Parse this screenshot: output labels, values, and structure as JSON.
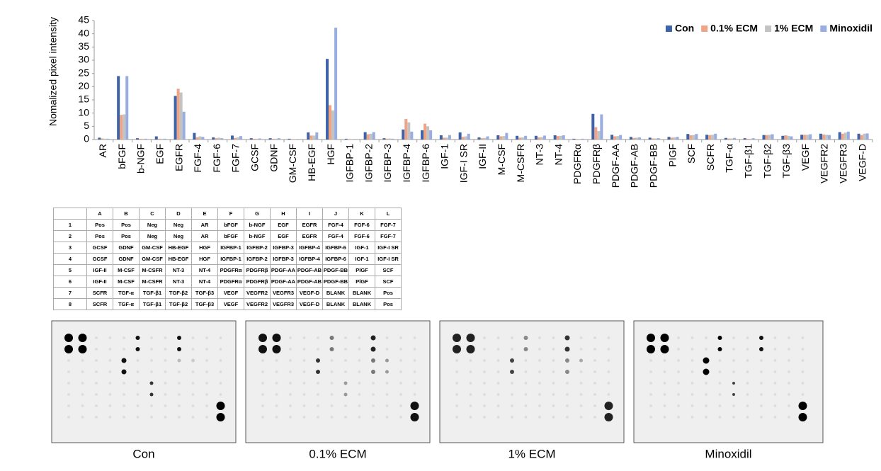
{
  "chart_data": {
    "type": "bar",
    "y_label": "Nomalized pixel intensity",
    "categories": [
      "AR",
      "bFGF",
      "b-NGF",
      "EGF",
      "EGFR",
      "FGF-4",
      "FGF-6",
      "FGF-7",
      "GCSF",
      "GDNF",
      "GM-CSF",
      "HB-EGF",
      "HGF",
      "IGFBP-1",
      "IGFBP-2",
      "IGFBP-3",
      "IGFBP-4",
      "IGFBP-6",
      "IGF-1",
      "IGF-I SR",
      "IGF-II",
      "M-CSF",
      "M-CSFR",
      "NT-3",
      "NT-4",
      "PDGFRα",
      "PDGFRβ",
      "PDGF-AA",
      "PDGF-AB",
      "PDGF-BB",
      "PIGF",
      "SCF",
      "SCFR",
      "TGF-α",
      "TGF-β1",
      "TGF-β2",
      "TGF-β3",
      "VEGF",
      "VEGFR2",
      "VEGFR3",
      "VEGF-D"
    ],
    "series": [
      {
        "name": "Con",
        "color": "#3f63a8",
        "values": [
          0.7,
          24,
          0.5,
          1.2,
          16.5,
          2.5,
          0.8,
          1.5,
          0.5,
          0.5,
          0.3,
          2.7,
          30.5,
          0.3,
          2.8,
          0.5,
          3.8,
          3.5,
          1.6,
          2.7,
          0.8,
          1.6,
          1.4,
          1.4,
          1.6,
          0.3,
          9.7,
          1.8,
          1,
          0.7,
          1,
          2.1,
          1.8,
          0.6,
          0.5,
          1.7,
          1.4,
          1.8,
          2.2,
          2.8,
          2.2
        ]
      },
      {
        "name": "0.1% ECM",
        "color": "#f0a486",
        "values": [
          0.4,
          9.3,
          0.3,
          0.3,
          19.2,
          0.8,
          0.5,
          0.6,
          0.3,
          0.3,
          0.2,
          1.5,
          13,
          0.2,
          2,
          0.3,
          7.8,
          6,
          0.7,
          1,
          0.5,
          1.2,
          0.7,
          0.8,
          1.3,
          0.2,
          4.7,
          1.2,
          0.6,
          0.4,
          0.7,
          1.6,
          1.7,
          0.4,
          0.3,
          1.7,
          1.6,
          1.8,
          1.9,
          2.2,
          1.7
        ]
      },
      {
        "name": "1% ECM",
        "color": "#c3c3c3",
        "values": [
          0.3,
          9.5,
          0.3,
          0.3,
          17.8,
          1.2,
          0.7,
          0.8,
          0.3,
          0.3,
          0.2,
          1.5,
          11,
          0.2,
          2.2,
          0.4,
          6.5,
          5,
          0.7,
          1.2,
          0.6,
          1.3,
          0.8,
          0.9,
          1.4,
          0.2,
          3.2,
          1.3,
          0.7,
          0.4,
          0.8,
          1.7,
          1.8,
          0.4,
          0.3,
          1.8,
          1.4,
          1.8,
          1.8,
          2.6,
          2.2
        ]
      },
      {
        "name": "Minoxidil",
        "color": "#99ade0",
        "values": [
          0.3,
          24,
          0.3,
          0.3,
          10.5,
          1,
          0.5,
          1.3,
          0.4,
          0.5,
          0.2,
          2.7,
          42.3,
          0.2,
          2.8,
          0.3,
          3,
          3.5,
          1.7,
          2.2,
          1.2,
          2.5,
          1.4,
          1.5,
          1.6,
          0.3,
          9.5,
          1.7,
          0.8,
          0.5,
          1,
          2.1,
          2.2,
          0.6,
          0.5,
          2,
          1.2,
          2,
          1.7,
          3,
          2.3
        ]
      }
    ],
    "ylim": [
      0,
      45
    ],
    "yticks": [
      0,
      5,
      10,
      15,
      20,
      25,
      30,
      35,
      40,
      45
    ],
    "grid": false,
    "legend": "upper right"
  },
  "table": {
    "header": [
      "A",
      "B",
      "C",
      "D",
      "E",
      "F",
      "G",
      "H",
      "I",
      "J",
      "K",
      "L"
    ],
    "rows": [
      [
        "1",
        "Pos",
        "Pos",
        "Neg",
        "Neg",
        "AR",
        "bFGF",
        "b-NGF",
        "EGF",
        "EGFR",
        "FGF-4",
        "FGF-6",
        "FGF-7"
      ],
      [
        "2",
        "Pos",
        "Pos",
        "Neg",
        "Neg",
        "AR",
        "bFGF",
        "b-NGF",
        "EGF",
        "EGFR",
        "FGF-4",
        "FGF-6",
        "FGF-7"
      ],
      [
        "3",
        "GCSF",
        "GDNF",
        "GM-CSF",
        "HB-EGF",
        "HGF",
        "IGFBP-1",
        "IGFBP-2",
        "IGFBP-3",
        "IGFBP-4",
        "IGFBP-6",
        "IGF-1",
        "IGF-I SR"
      ],
      [
        "4",
        "GCSF",
        "GDNF",
        "GM-CSF",
        "HB-EGF",
        "HGF",
        "IGFBP-1",
        "IGFBP-2",
        "IGFBP-3",
        "IGFBP-4",
        "IGFBP-6",
        "IGF-1",
        "IGF-I SR"
      ],
      [
        "5",
        "IGF-II",
        "M-CSF",
        "M-CSFR",
        "NT-3",
        "NT-4",
        "PDGFRα",
        "PDGFRβ",
        "PDGF-AA",
        "PDGF-AB",
        "PDGF-BB",
        "PlGF",
        "SCF"
      ],
      [
        "6",
        "IGF-II",
        "M-CSF",
        "M-CSFR",
        "NT-3",
        "NT-4",
        "PDGFRα",
        "PDGFRβ",
        "PDGF-AA",
        "PDGF-AB",
        "PDGF-BB",
        "PlGF",
        "SCF"
      ],
      [
        "7",
        "SCFR",
        "TGF-α",
        "TGF-β1",
        "TGF-β2",
        "TGF-β3",
        "VEGF",
        "VEGFR2",
        "VEGFR3",
        "VEGF-D",
        "BLANK",
        "BLANK",
        "Pos"
      ],
      [
        "8",
        "SCFR",
        "TGF-α",
        "TGF-β1",
        "TGF-β2",
        "TGF-β3",
        "VEGF",
        "VEGFR2",
        "VEGFR3",
        "VEGF-D",
        "BLANK",
        "BLANK",
        "Pos"
      ]
    ]
  },
  "panels": [
    {
      "label": "Con"
    },
    {
      "label": "0.1% ECM"
    },
    {
      "label": "1% ECM"
    },
    {
      "label": "Minoxidil"
    }
  ]
}
